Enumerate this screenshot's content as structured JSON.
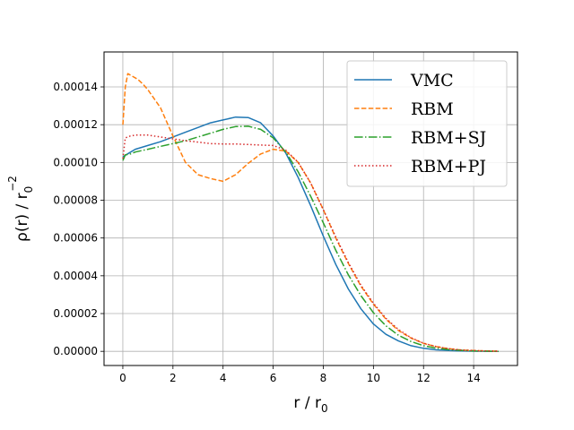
{
  "chart_data": {
    "type": "line",
    "title": "",
    "xlabel": "r / r",
    "xlabel_sub": "0",
    "ylabel": "ρ(r) / r",
    "ylabel_sub": "0",
    "ylabel_sup": "−2",
    "xlim": [
      -0.75,
      15.75
    ],
    "ylim": [
      -7.5e-06,
      0.0001585
    ],
    "xticks": [
      0,
      2,
      4,
      6,
      8,
      10,
      12,
      14
    ],
    "xtick_labels": [
      "0",
      "2",
      "4",
      "6",
      "8",
      "10",
      "12",
      "14"
    ],
    "yticks": [
      0,
      2e-05,
      4e-05,
      6e-05,
      8e-05,
      0.0001,
      0.00012,
      0.00014
    ],
    "ytick_labels": [
      "0.00000",
      "0.00002",
      "0.00004",
      "0.00006",
      "0.00008",
      "0.00010",
      "0.00012",
      "0.00014"
    ],
    "grid": true,
    "legend_position": "top-right",
    "series": [
      {
        "name": "VMC",
        "color": "#1f77b4",
        "dash": "solid",
        "x": [
          0,
          0.25,
          0.5,
          1,
          1.5,
          2,
          2.5,
          3,
          3.5,
          4,
          4.5,
          5,
          5.5,
          6,
          6.5,
          7,
          7.5,
          8,
          8.5,
          9,
          9.5,
          10,
          10.5,
          11,
          11.5,
          12,
          12.5,
          13,
          13.5,
          14,
          14.5,
          15
        ],
        "y": [
          0.000103,
          0.000105,
          0.000107,
          0.000109,
          0.000111,
          0.0001135,
          0.000116,
          0.0001185,
          0.000121,
          0.0001225,
          0.000124,
          0.0001238,
          0.000121,
          0.000114,
          0.000105,
          9.2e-05,
          7.7e-05,
          6.1e-05,
          4.6e-05,
          3.3e-05,
          2.25e-05,
          1.45e-05,
          9e-06,
          5.5e-06,
          3e-06,
          1.6e-06,
          8e-07,
          4e-07,
          2e-07,
          1e-07,
          5e-08,
          0
        ]
      },
      {
        "name": "RBM",
        "color": "#ff7f0e",
        "dash": "dashed",
        "x": [
          0,
          0.1,
          0.2,
          0.4,
          0.6,
          0.8,
          1,
          1.5,
          2,
          2.5,
          3,
          3.5,
          4,
          4.5,
          5,
          5.5,
          6,
          6.5,
          7,
          7.5,
          8,
          8.5,
          9,
          9.5,
          10,
          10.5,
          11,
          11.5,
          12,
          12.5,
          13,
          13.5,
          14,
          14.5,
          15
        ],
        "y": [
          0.00012,
          0.00014,
          0.000147,
          0.0001455,
          0.000144,
          0.0001415,
          0.0001385,
          0.000129,
          0.000114,
          0.0001,
          9.35e-05,
          9.15e-05,
          9e-05,
          9.35e-05,
          9.95e-05,
          0.0001045,
          0.000107,
          0.000106,
          0.0001,
          8.9e-05,
          7.5e-05,
          6e-05,
          4.65e-05,
          3.45e-05,
          2.5e-05,
          1.7e-05,
          1.1e-05,
          7e-06,
          4.2e-06,
          2.5e-06,
          1.4e-06,
          7e-07,
          4e-07,
          2e-07,
          1e-07
        ]
      },
      {
        "name": "RBM+SJ",
        "color": "#2ca02c",
        "dash": "dashdot",
        "x": [
          0,
          0.1,
          0.3,
          0.5,
          1,
          1.5,
          2,
          2.5,
          3,
          3.5,
          4,
          4.5,
          5,
          5.5,
          6,
          6.5,
          7,
          7.5,
          8,
          8.5,
          9,
          9.5,
          10,
          10.5,
          11,
          11.5,
          12,
          12.5,
          13,
          13.5,
          14,
          14.5,
          15
        ],
        "y": [
          0.000101,
          0.000104,
          0.0001045,
          0.0001055,
          0.000107,
          0.0001085,
          0.00011,
          0.0001115,
          0.0001135,
          0.0001155,
          0.0001175,
          0.000119,
          0.0001192,
          0.0001175,
          0.000113,
          0.0001055,
          9.5e-05,
          8.2e-05,
          6.8e-05,
          5.35e-05,
          4.05e-05,
          2.95e-05,
          2.05e-05,
          1.35e-05,
          8.5e-06,
          5.2e-06,
          3e-06,
          1.7e-06,
          9e-07,
          5e-07,
          2e-07,
          1e-07,
          0
        ]
      },
      {
        "name": "RBM+PJ",
        "color": "#d62728",
        "dash": "dotted",
        "x": [
          0,
          0.1,
          0.3,
          0.5,
          1,
          1.5,
          2,
          2.5,
          3,
          3.5,
          4,
          4.5,
          5,
          5.5,
          6,
          6.5,
          7,
          7.5,
          8,
          8.5,
          9,
          9.5,
          10,
          10.5,
          11,
          11.5,
          12,
          12.5,
          13,
          13.5,
          14,
          14.5,
          15
        ],
        "y": [
          0.000102,
          0.000113,
          0.000114,
          0.0001145,
          0.0001145,
          0.0001135,
          0.0001125,
          0.0001115,
          0.0001108,
          0.00011,
          0.0001098,
          0.0001098,
          0.0001095,
          0.0001092,
          0.000109,
          0.0001065,
          0.0001,
          8.9e-05,
          7.5e-05,
          6.05e-05,
          4.7e-05,
          3.5e-05,
          2.55e-05,
          1.75e-05,
          1.15e-05,
          7.2e-06,
          4.3e-06,
          2.5e-06,
          1.4e-06,
          7e-07,
          4e-07,
          2e-07,
          1e-07
        ]
      }
    ]
  }
}
